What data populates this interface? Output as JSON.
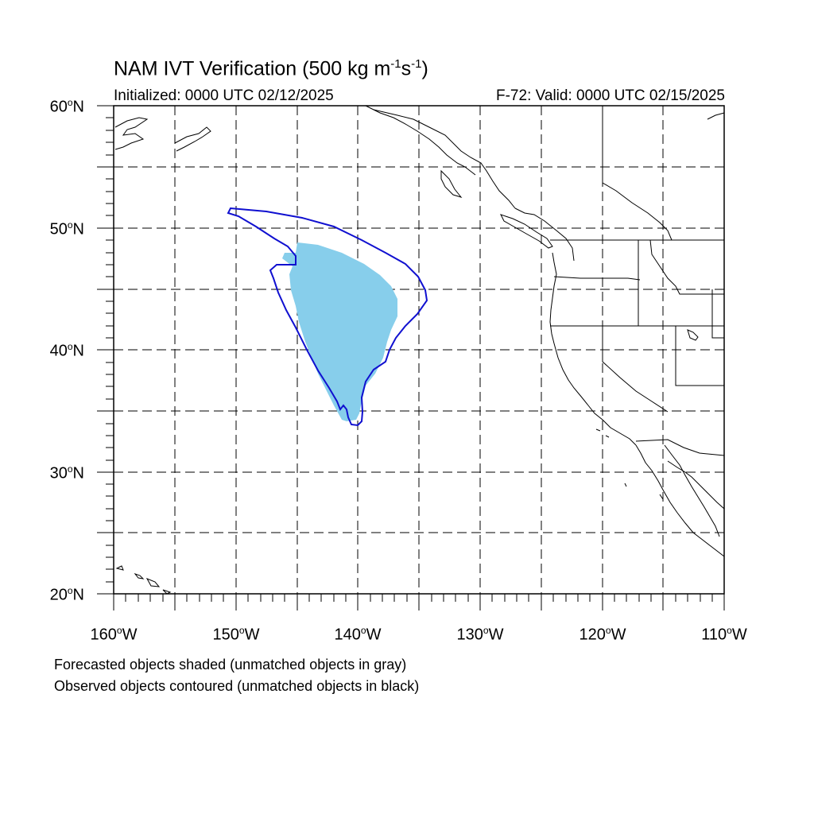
{
  "title": {
    "prefix": "NAM IVT Verification (500 kg m",
    "exp1": "-1",
    "mid": "s",
    "exp2": "-1",
    "suffix": ")"
  },
  "initialized": "Initialized: 0000 UTC 02/12/2025",
  "valid": "F-72: Valid: 0000 UTC 02/15/2025",
  "lat_labels": [
    {
      "num": "60",
      "hemi": "N"
    },
    {
      "num": "50",
      "hemi": "N"
    },
    {
      "num": "40",
      "hemi": "N"
    },
    {
      "num": "30",
      "hemi": "N"
    },
    {
      "num": "20",
      "hemi": "N"
    }
  ],
  "lon_labels": [
    {
      "num": "160",
      "hemi": "W"
    },
    {
      "num": "150",
      "hemi": "W"
    },
    {
      "num": "140",
      "hemi": "W"
    },
    {
      "num": "130",
      "hemi": "W"
    },
    {
      "num": "120",
      "hemi": "W"
    },
    {
      "num": "110",
      "hemi": "W"
    }
  ],
  "degree_symbol": "o",
  "footnotes": [
    "Forecasted objects shaded (unmatched objects in gray)",
    "Observed objects contoured (unmatched objects in black)"
  ],
  "colors": {
    "forecast_fill": "#87ceeb",
    "observed_contour": "#1010d0",
    "coastline": "#000000",
    "grid": "#000000"
  }
}
